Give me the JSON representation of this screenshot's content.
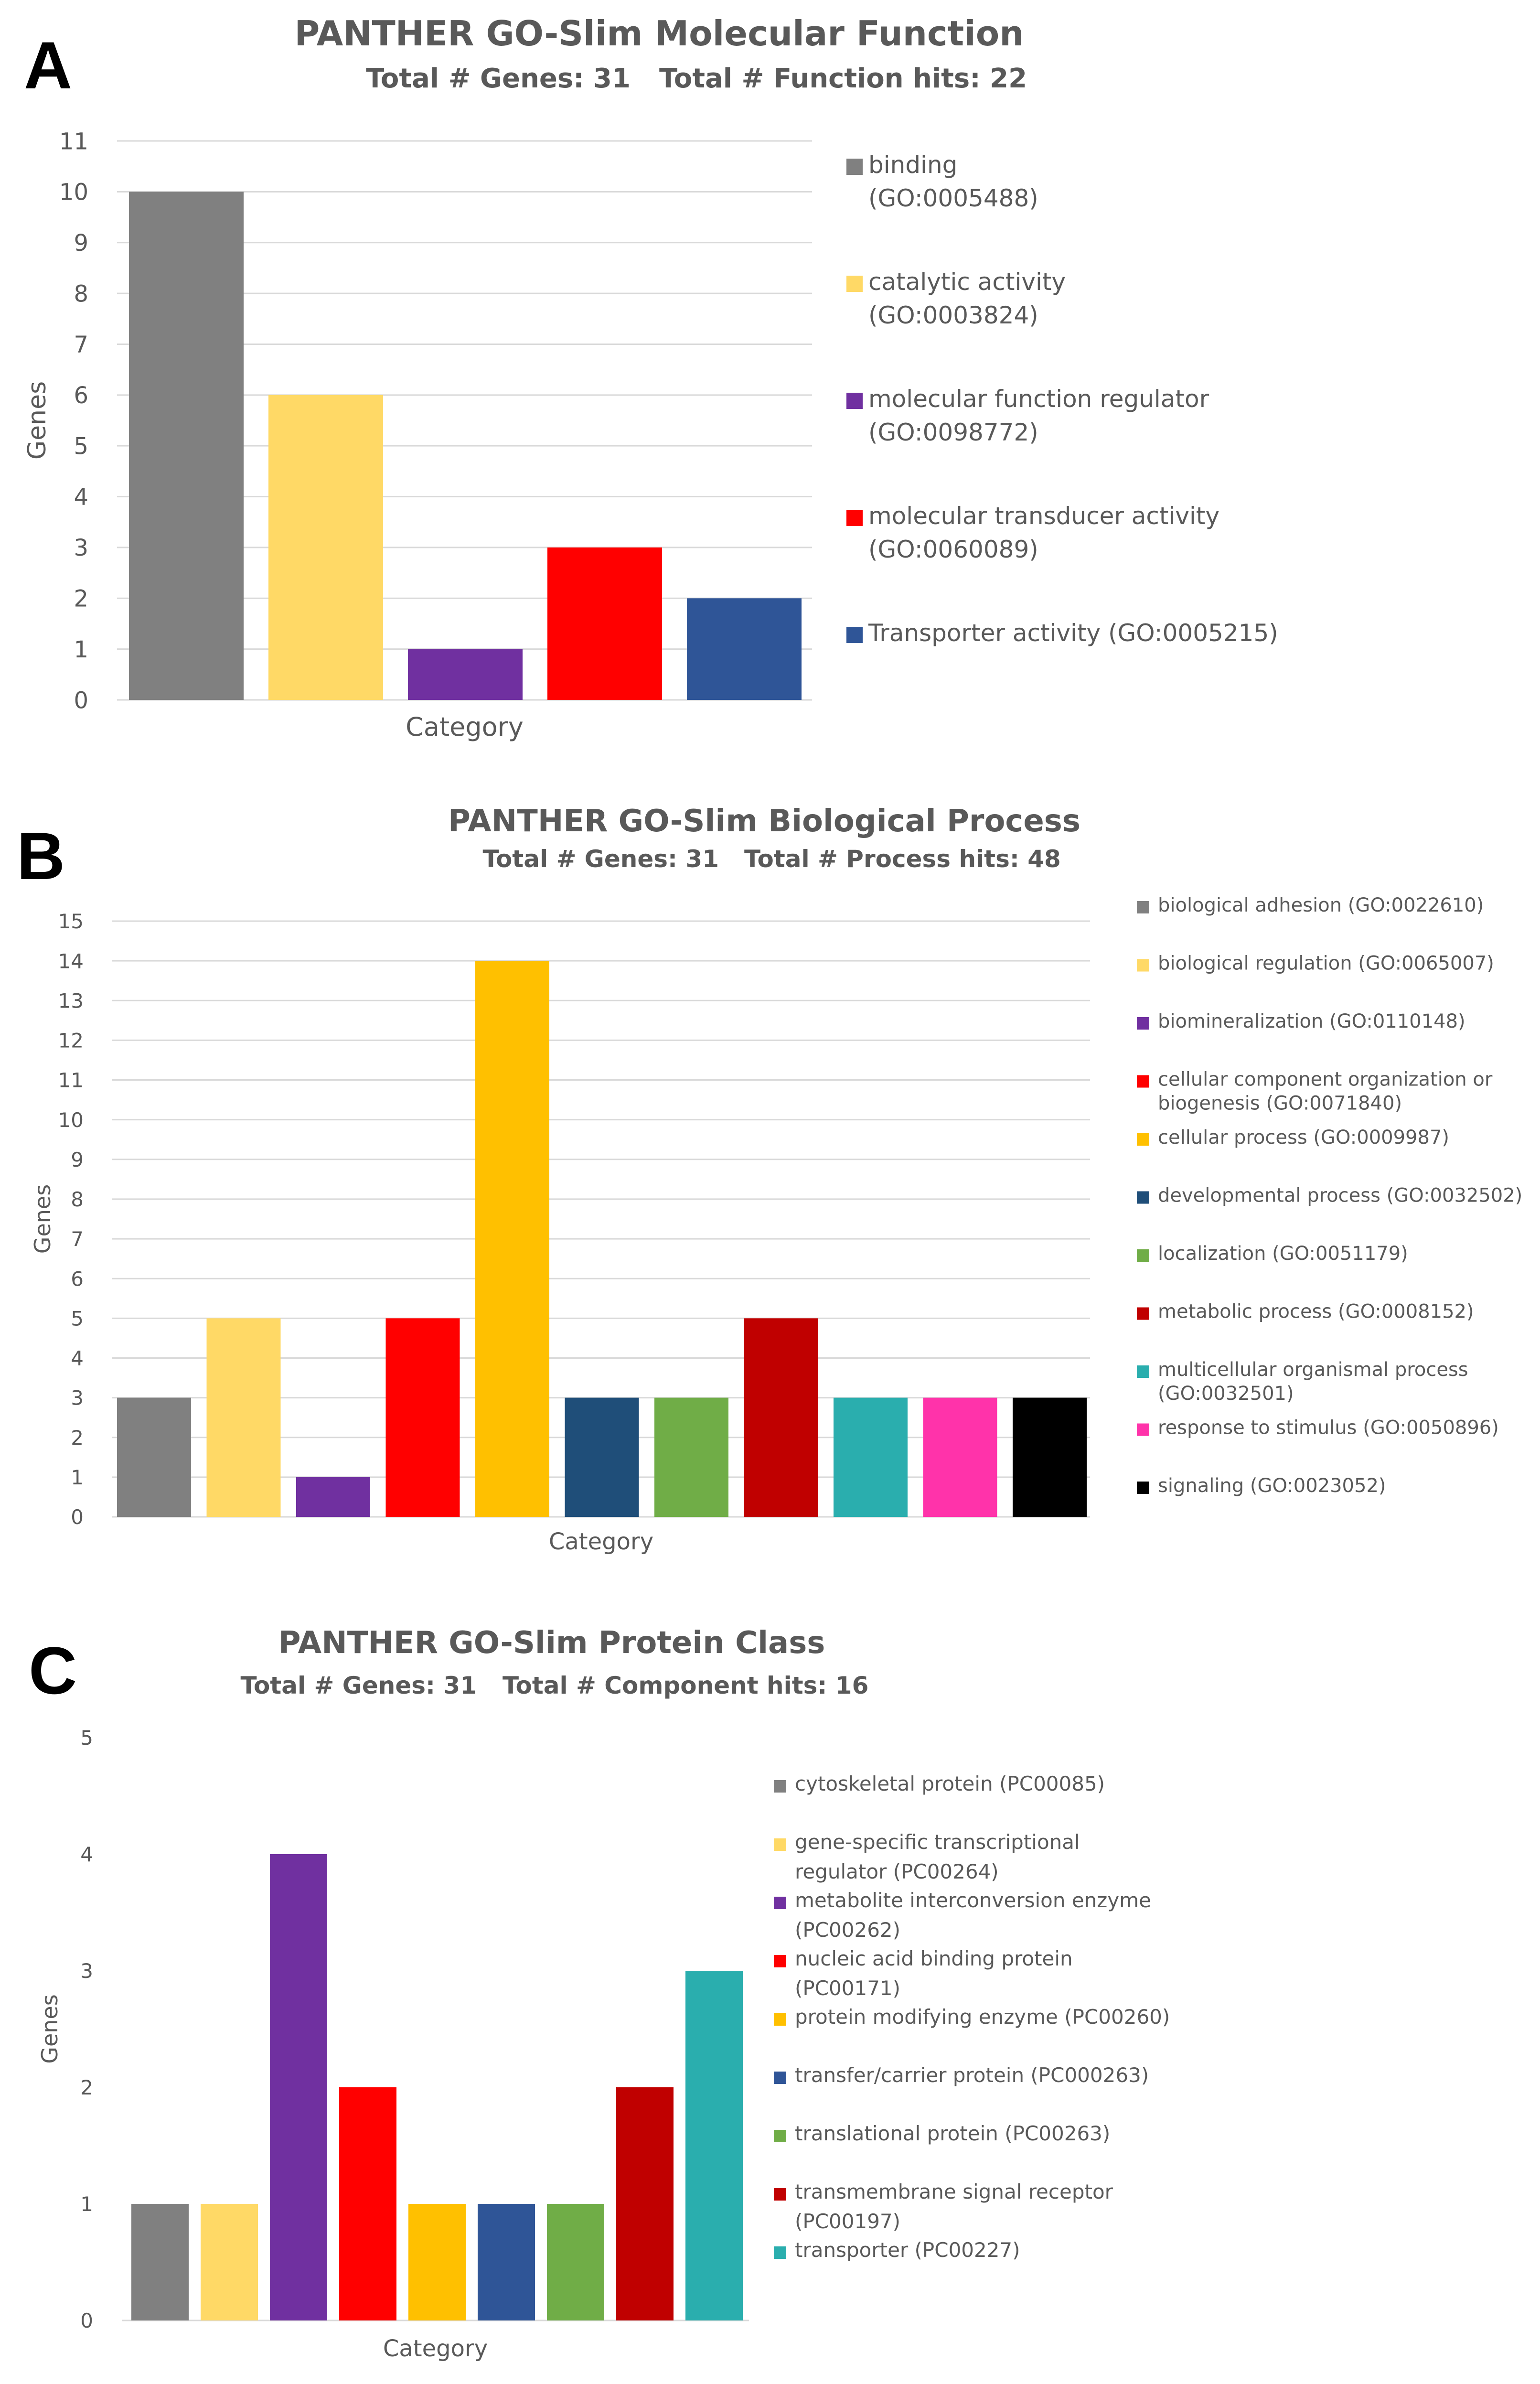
{
  "chart_data": [
    {
      "panel": "A",
      "type": "bar",
      "title": "PANTHER GO-Slim Molecular Function",
      "subtitle_left": "Total # Genes: 31",
      "subtitle_right": "Total # Function hits: 22",
      "xlabel": "Category",
      "ylabel": "Genes",
      "ylim": [
        0,
        11
      ],
      "yticks": [
        0,
        1,
        2,
        3,
        4,
        5,
        6,
        7,
        8,
        9,
        10,
        11
      ],
      "grid": true,
      "legend_position": "right",
      "categories": [
        {
          "label": [
            "binding",
            "(GO:0005488)"
          ],
          "value": 10,
          "color": "#808080"
        },
        {
          "label": [
            "catalytic activity",
            "(GO:0003824)"
          ],
          "value": 6,
          "color": "#FFD966"
        },
        {
          "label": [
            "molecular function regulator",
            "(GO:0098772)"
          ],
          "value": 1,
          "color": "#7030A0"
        },
        {
          "label": [
            "molecular transducer activity",
            "(GO:0060089)"
          ],
          "value": 3,
          "color": "#FF0000"
        },
        {
          "label": [
            "Transporter activity (GO:0005215)"
          ],
          "value": 2,
          "color": "#2F5597"
        }
      ]
    },
    {
      "panel": "B",
      "type": "bar",
      "title": "PANTHER GO-Slim Biological Process",
      "subtitle_left": "Total # Genes: 31",
      "subtitle_right": "Total # Process hits: 48",
      "xlabel": "Category",
      "ylabel": "Genes",
      "ylim": [
        0,
        15
      ],
      "yticks": [
        0,
        1,
        2,
        3,
        4,
        5,
        6,
        7,
        8,
        9,
        10,
        11,
        12,
        13,
        14,
        15
      ],
      "grid": true,
      "legend_position": "right",
      "categories": [
        {
          "label": [
            "biological adhesion (GO:0022610)"
          ],
          "value": 3,
          "color": "#808080"
        },
        {
          "label": [
            "biological regulation (GO:0065007)"
          ],
          "value": 5,
          "color": "#FFD966"
        },
        {
          "label": [
            "biomineralization (GO:0110148)"
          ],
          "value": 1,
          "color": "#7030A0"
        },
        {
          "label": [
            "cellular component organization or",
            "biogenesis (GO:0071840)"
          ],
          "value": 5,
          "color": "#FF0000"
        },
        {
          "label": [
            "cellular process (GO:0009987)"
          ],
          "value": 14,
          "color": "#FFC000"
        },
        {
          "label": [
            "developmental process (GO:0032502)"
          ],
          "value": 3,
          "color": "#1F4E79"
        },
        {
          "label": [
            "localization (GO:0051179)"
          ],
          "value": 3,
          "color": "#70AD47"
        },
        {
          "label": [
            "metabolic process (GO:0008152)"
          ],
          "value": 5,
          "color": "#C00000"
        },
        {
          "label": [
            "multicellular organismal process",
            "(GO:0032501)"
          ],
          "value": 3,
          "color": "#2AAEAE"
        },
        {
          "label": [
            "response to stimulus (GO:0050896)"
          ],
          "value": 3,
          "color": "#FF33AA"
        },
        {
          "label": [
            "signaling (GO:0023052)"
          ],
          "value": 3,
          "color": "#000000"
        }
      ]
    },
    {
      "panel": "C",
      "type": "bar",
      "title": "PANTHER GO-Slim Protein Class",
      "subtitle_left": "Total # Genes: 31",
      "subtitle_right": "Total # Component hits: 16",
      "xlabel": "Category",
      "ylabel": "Genes",
      "ylim": [
        0,
        5
      ],
      "yticks": [
        0,
        1,
        2,
        3,
        4,
        5
      ],
      "grid": false,
      "legend_position": "right",
      "categories": [
        {
          "label": [
            "cytoskeletal protein (PC00085)"
          ],
          "value": 1,
          "color": "#808080"
        },
        {
          "label": [
            "gene-specific transcriptional",
            "regulator (PC00264)"
          ],
          "value": 1,
          "color": "#FFD966"
        },
        {
          "label": [
            "metabolite interconversion enzyme",
            "(PC00262)"
          ],
          "value": 4,
          "color": "#7030A0"
        },
        {
          "label": [
            "nucleic acid binding protein",
            "(PC00171)"
          ],
          "value": 2,
          "color": "#FF0000"
        },
        {
          "label": [
            "protein modifying enzyme (PC00260)"
          ],
          "value": 1,
          "color": "#FFC000"
        },
        {
          "label": [
            "transfer/carrier protein (PC000263)"
          ],
          "value": 1,
          "color": "#2F5597"
        },
        {
          "label": [
            "translational protein (PC00263)"
          ],
          "value": 1,
          "color": "#70AD47"
        },
        {
          "label": [
            "transmembrane signal receptor",
            "(PC00197)"
          ],
          "value": 2,
          "color": "#C00000"
        },
        {
          "label": [
            "transporter (PC00227)"
          ],
          "value": 3,
          "color": "#2AAEAE"
        }
      ]
    }
  ]
}
